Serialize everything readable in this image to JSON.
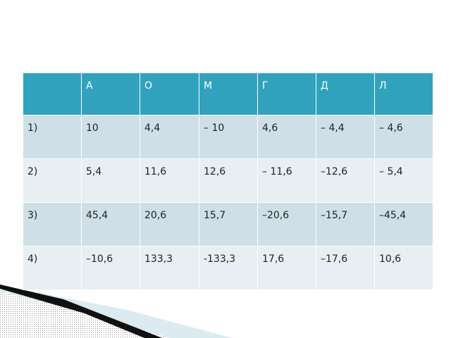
{
  "table": {
    "columns": [
      "А",
      "О",
      "М",
      "Г",
      "Д",
      "Л"
    ],
    "rows": [
      [
        "1)",
        "10",
        "4,4",
        "– 10",
        "4,6",
        "– 4,4",
        "– 4,6"
      ],
      [
        "2)",
        "5,4",
        "11,6",
        "12,6",
        "– 11,6",
        "–12,6",
        "– 5,4"
      ],
      [
        "3)",
        "45,4",
        "20,6",
        "15,7",
        "–20,6",
        "–15,7",
        "–45,4"
      ],
      [
        "4)",
        "–10,6",
        "133,3",
        "-133,3",
        "17,6",
        "–17,6",
        "10,6"
      ]
    ]
  }
}
